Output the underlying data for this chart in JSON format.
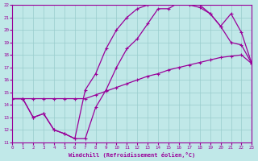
{
  "xlabel": "Windchill (Refroidissement éolien,°C)",
  "xlim": [
    0,
    23
  ],
  "ylim": [
    11,
    22
  ],
  "yticks": [
    11,
    12,
    13,
    14,
    15,
    16,
    17,
    18,
    19,
    20,
    21,
    22
  ],
  "xticks": [
    0,
    1,
    2,
    3,
    4,
    5,
    6,
    7,
    8,
    9,
    10,
    11,
    12,
    13,
    14,
    15,
    16,
    17,
    18,
    19,
    20,
    21,
    22,
    23
  ],
  "bg_color": "#c0e8e8",
  "line_color": "#990099",
  "grid_color": "#99cccc",
  "curve1_x": [
    0,
    1,
    2,
    3,
    4,
    5,
    6,
    7,
    8,
    9,
    10,
    11,
    12,
    13,
    14,
    15,
    16,
    17,
    18,
    19,
    20,
    21,
    22,
    23
  ],
  "curve1_y": [
    14.5,
    14.5,
    14.5,
    14.5,
    14.5,
    14.5,
    14.5,
    14.5,
    14.8,
    15.1,
    15.4,
    15.7,
    16.0,
    16.3,
    16.5,
    16.8,
    17.0,
    17.2,
    17.4,
    17.6,
    17.8,
    17.9,
    18.0,
    17.3
  ],
  "curve2_x": [
    0,
    1,
    2,
    3,
    4,
    5,
    6,
    7,
    8,
    9,
    10,
    11,
    12,
    13,
    14,
    15,
    16,
    17,
    18,
    19,
    20,
    21,
    22,
    23
  ],
  "curve2_y": [
    14.5,
    14.5,
    13.0,
    13.3,
    12.0,
    11.7,
    11.3,
    11.3,
    13.8,
    15.2,
    17.0,
    18.5,
    19.3,
    20.5,
    21.7,
    21.7,
    22.2,
    22.2,
    22.0,
    21.3,
    20.3,
    19.0,
    18.8,
    17.3
  ],
  "curve3_x": [
    0,
    1,
    2,
    3,
    4,
    5,
    6,
    7,
    8,
    9,
    10,
    11,
    12,
    13,
    14,
    15,
    16,
    17,
    18,
    19,
    20,
    21,
    22,
    23
  ],
  "curve3_y": [
    14.5,
    14.5,
    13.0,
    13.3,
    12.0,
    11.7,
    11.3,
    15.2,
    16.5,
    18.5,
    20.0,
    21.0,
    21.7,
    22.0,
    22.2,
    22.2,
    22.2,
    22.0,
    21.8,
    21.3,
    20.3,
    21.3,
    19.8,
    17.3
  ]
}
